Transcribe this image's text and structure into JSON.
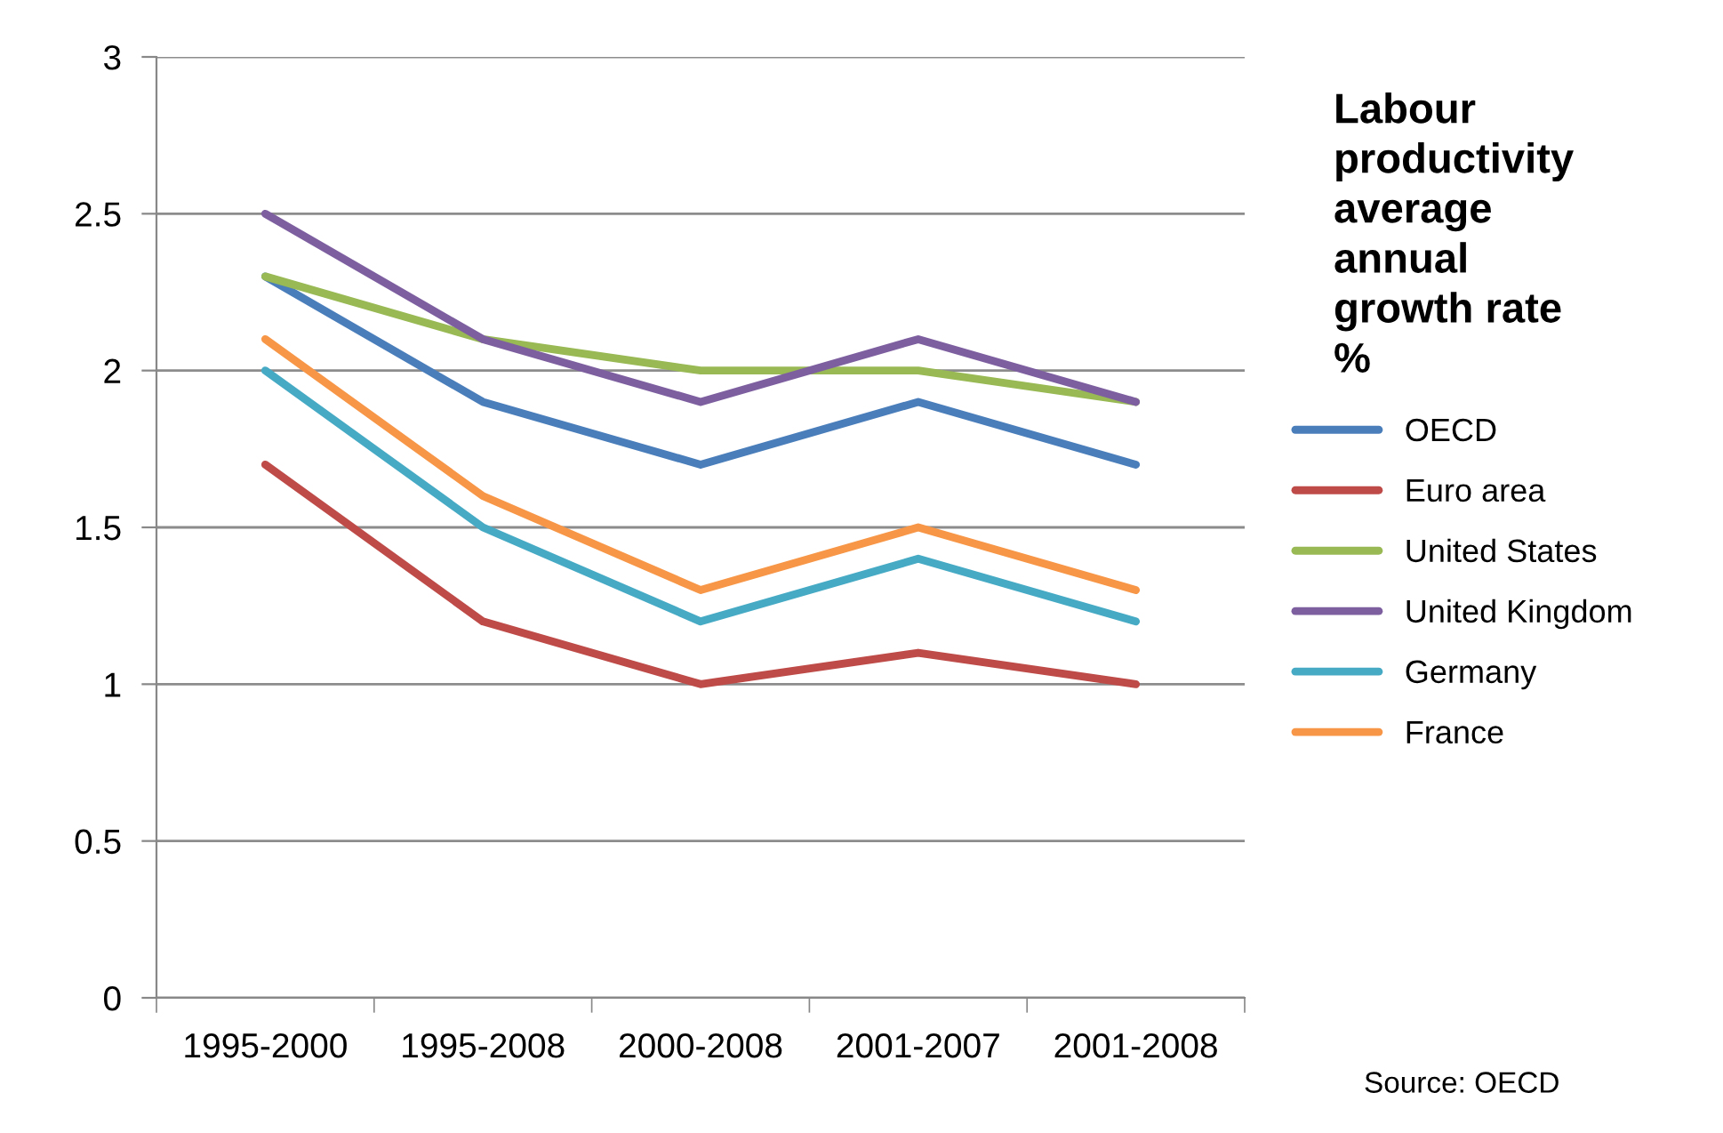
{
  "chart_data": {
    "type": "line",
    "title": "Labour\nproductivity\naverage\nannual\ngrowth rate\n%",
    "categories": [
      "1995-2000",
      "1995-2008",
      "2000-2008",
      "2001-2007",
      "2001-2008"
    ],
    "series": [
      {
        "name": "OECD",
        "color": "#4a7ebb",
        "values": [
          2.3,
          1.9,
          1.7,
          1.9,
          1.7
        ]
      },
      {
        "name": "Euro area",
        "color": "#be4b48",
        "values": [
          1.7,
          1.2,
          1.0,
          1.1,
          1.0
        ]
      },
      {
        "name": "United States",
        "color": "#98b954",
        "values": [
          2.3,
          2.1,
          2.0,
          2.0,
          1.9
        ]
      },
      {
        "name": "United Kingdom",
        "color": "#7d5fa0",
        "values": [
          2.5,
          2.1,
          1.9,
          2.1,
          1.9
        ]
      },
      {
        "name": "Germany",
        "color": "#46aac5",
        "values": [
          2.0,
          1.5,
          1.2,
          1.4,
          1.2
        ]
      },
      {
        "name": "France",
        "color": "#f79646",
        "values": [
          2.1,
          1.6,
          1.3,
          1.5,
          1.3
        ]
      }
    ],
    "ylim": [
      0,
      3
    ],
    "yticks": [
      0,
      0.5,
      1,
      1.5,
      2,
      2.5,
      3
    ],
    "grid": "y",
    "legend": "right",
    "marker": "none",
    "line_style": "solid",
    "annotations": [
      "Source: OECD"
    ]
  }
}
